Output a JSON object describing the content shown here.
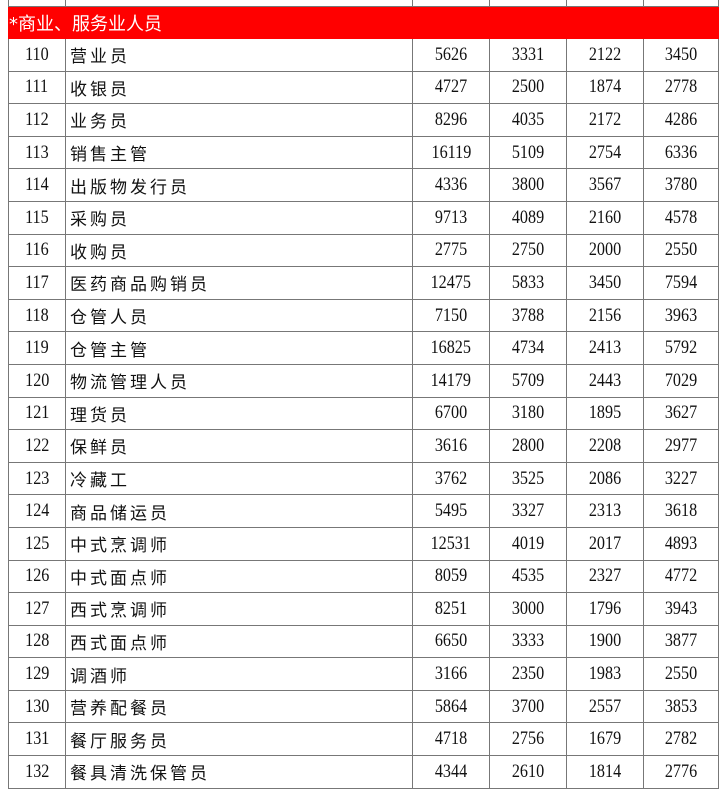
{
  "section_title": "*商业、服务业人员",
  "rows": [
    {
      "no": "110",
      "name": "营业员",
      "v": [
        "5626",
        "3331",
        "2122",
        "3450"
      ]
    },
    {
      "no": "111",
      "name": "收银员",
      "v": [
        "4727",
        "2500",
        "1874",
        "2778"
      ]
    },
    {
      "no": "112",
      "name": "业务员",
      "v": [
        "8296",
        "4035",
        "2172",
        "4286"
      ]
    },
    {
      "no": "113",
      "name": "销售主管",
      "v": [
        "16119",
        "5109",
        "2754",
        "6336"
      ]
    },
    {
      "no": "114",
      "name": "出版物发行员",
      "v": [
        "4336",
        "3800",
        "3567",
        "3780"
      ]
    },
    {
      "no": "115",
      "name": "采购员",
      "v": [
        "9713",
        "4089",
        "2160",
        "4578"
      ]
    },
    {
      "no": "116",
      "name": "收购员",
      "v": [
        "2775",
        "2750",
        "2000",
        "2550"
      ]
    },
    {
      "no": "117",
      "name": "医药商品购销员",
      "v": [
        "12475",
        "5833",
        "3450",
        "7594"
      ]
    },
    {
      "no": "118",
      "name": "仓管人员",
      "v": [
        "7150",
        "3788",
        "2156",
        "3963"
      ]
    },
    {
      "no": "119",
      "name": "仓管主管",
      "v": [
        "16825",
        "4734",
        "2413",
        "5792"
      ]
    },
    {
      "no": "120",
      "name": "物流管理人员",
      "v": [
        "14179",
        "5709",
        "2443",
        "7029"
      ]
    },
    {
      "no": "121",
      "name": "理货员",
      "v": [
        "6700",
        "3180",
        "1895",
        "3627"
      ]
    },
    {
      "no": "122",
      "name": "保鲜员",
      "v": [
        "3616",
        "2800",
        "2208",
        "2977"
      ]
    },
    {
      "no": "123",
      "name": "冷藏工",
      "v": [
        "3762",
        "3525",
        "2086",
        "3227"
      ]
    },
    {
      "no": "124",
      "name": "商品储运员",
      "v": [
        "5495",
        "3327",
        "2313",
        "3618"
      ]
    },
    {
      "no": "125",
      "name": "中式烹调师",
      "v": [
        "12531",
        "4019",
        "2017",
        "4893"
      ]
    },
    {
      "no": "126",
      "name": "中式面点师",
      "v": [
        "8059",
        "4535",
        "2327",
        "4772"
      ]
    },
    {
      "no": "127",
      "name": "西式烹调师",
      "v": [
        "8251",
        "3000",
        "1796",
        "3943"
      ]
    },
    {
      "no": "128",
      "name": "西式面点师",
      "v": [
        "6650",
        "3333",
        "1900",
        "3877"
      ]
    },
    {
      "no": "129",
      "name": "调酒师",
      "v": [
        "3166",
        "2350",
        "1983",
        "2550"
      ]
    },
    {
      "no": "130",
      "name": "营养配餐员",
      "v": [
        "5864",
        "3700",
        "2557",
        "3853"
      ]
    },
    {
      "no": "131",
      "name": "餐厅服务员",
      "v": [
        "4718",
        "2756",
        "1679",
        "2782"
      ]
    },
    {
      "no": "132",
      "name": "餐具清洗保管员",
      "v": [
        "4344",
        "2610",
        "1814",
        "2776"
      ]
    }
  ]
}
